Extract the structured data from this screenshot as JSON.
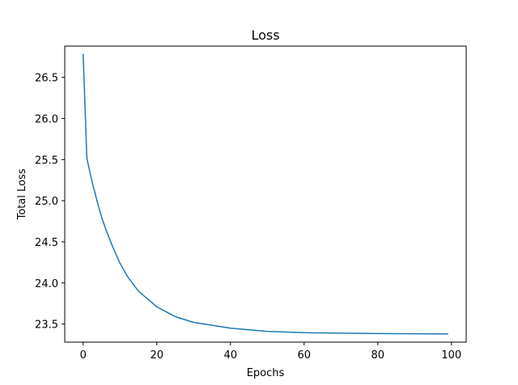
{
  "chart_data": {
    "type": "line",
    "title": "Loss",
    "xlabel": "Epochs",
    "ylabel": "Total Loss",
    "xlim": [
      -5,
      104
    ],
    "ylim": [
      23.28,
      26.88
    ],
    "xticks": [
      0,
      20,
      40,
      60,
      80,
      100
    ],
    "yticks": [
      23.5,
      24.0,
      24.5,
      25.0,
      25.5,
      26.0,
      26.5
    ],
    "xtick_labels": [
      "0",
      "20",
      "40",
      "60",
      "80",
      "100"
    ],
    "ytick_labels": [
      "23.5",
      "24.0",
      "24.5",
      "25.0",
      "25.5",
      "26.0",
      "26.5"
    ],
    "grid": false,
    "legend": "none",
    "series": [
      {
        "color": "#1f77b4",
        "x": [
          0,
          1,
          2,
          3,
          4,
          5,
          6,
          8,
          10,
          12,
          15,
          20,
          25,
          30,
          40,
          50,
          60,
          70,
          80,
          90,
          99
        ],
        "y": [
          26.78,
          25.52,
          25.31,
          25.13,
          24.96,
          24.8,
          24.67,
          24.44,
          24.24,
          24.08,
          23.9,
          23.71,
          23.59,
          23.52,
          23.45,
          23.41,
          23.395,
          23.39,
          23.385,
          23.382,
          23.38
        ]
      }
    ]
  }
}
